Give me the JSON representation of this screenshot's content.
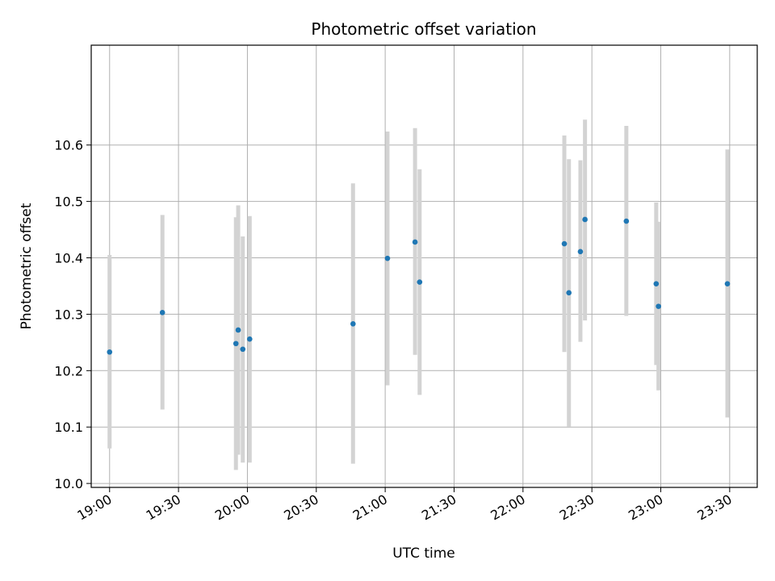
{
  "chart_data": {
    "type": "scatter",
    "title": "Photometric offset variation",
    "xlabel": "UTC time",
    "ylabel": "Photometric offset",
    "x_range": [
      "18:52",
      "23:42"
    ],
    "ylim": [
      9.993,
      10.777
    ],
    "x_ticks": [
      "19:00",
      "19:30",
      "20:00",
      "20:30",
      "21:00",
      "21:30",
      "22:00",
      "22:30",
      "23:00",
      "23:30"
    ],
    "y_ticks": [
      "10.0",
      "10.1",
      "10.2",
      "10.3",
      "10.4",
      "10.5",
      "10.6"
    ],
    "grid": true,
    "point_color": "#1f77b4",
    "errorbar_color": "#d3d3d3",
    "points": [
      {
        "x": "19:00",
        "y": 10.233,
        "ylow": 10.062,
        "yhigh": 10.405
      },
      {
        "x": "19:23",
        "y": 10.303,
        "ylow": 10.131,
        "yhigh": 10.476
      },
      {
        "x": "19:55",
        "y": 10.248,
        "ylow": 10.024,
        "yhigh": 10.472
      },
      {
        "x": "19:56",
        "y": 10.272,
        "ylow": 10.051,
        "yhigh": 10.493
      },
      {
        "x": "19:58",
        "y": 10.238,
        "ylow": 10.037,
        "yhigh": 10.438
      },
      {
        "x": "20:01",
        "y": 10.256,
        "ylow": 10.037,
        "yhigh": 10.474
      },
      {
        "x": "20:46",
        "y": 10.283,
        "ylow": 10.035,
        "yhigh": 10.532
      },
      {
        "x": "21:01",
        "y": 10.399,
        "ylow": 10.174,
        "yhigh": 10.624
      },
      {
        "x": "21:13",
        "y": 10.428,
        "ylow": 10.228,
        "yhigh": 10.63
      },
      {
        "x": "21:15",
        "y": 10.357,
        "ylow": 10.157,
        "yhigh": 10.557
      },
      {
        "x": "22:18",
        "y": 10.425,
        "ylow": 10.233,
        "yhigh": 10.617
      },
      {
        "x": "22:20",
        "y": 10.338,
        "ylow": 10.101,
        "yhigh": 10.575
      },
      {
        "x": "22:25",
        "y": 10.411,
        "ylow": 10.251,
        "yhigh": 10.573
      },
      {
        "x": "22:27",
        "y": 10.468,
        "ylow": 10.289,
        "yhigh": 10.645
      },
      {
        "x": "22:45",
        "y": 10.465,
        "ylow": 10.297,
        "yhigh": 10.634
      },
      {
        "x": "22:58",
        "y": 10.354,
        "ylow": 10.21,
        "yhigh": 10.498
      },
      {
        "x": "22:59",
        "y": 10.314,
        "ylow": 10.165,
        "yhigh": 10.464
      },
      {
        "x": "23:29",
        "y": 10.354,
        "ylow": 10.117,
        "yhigh": 10.592
      }
    ]
  }
}
